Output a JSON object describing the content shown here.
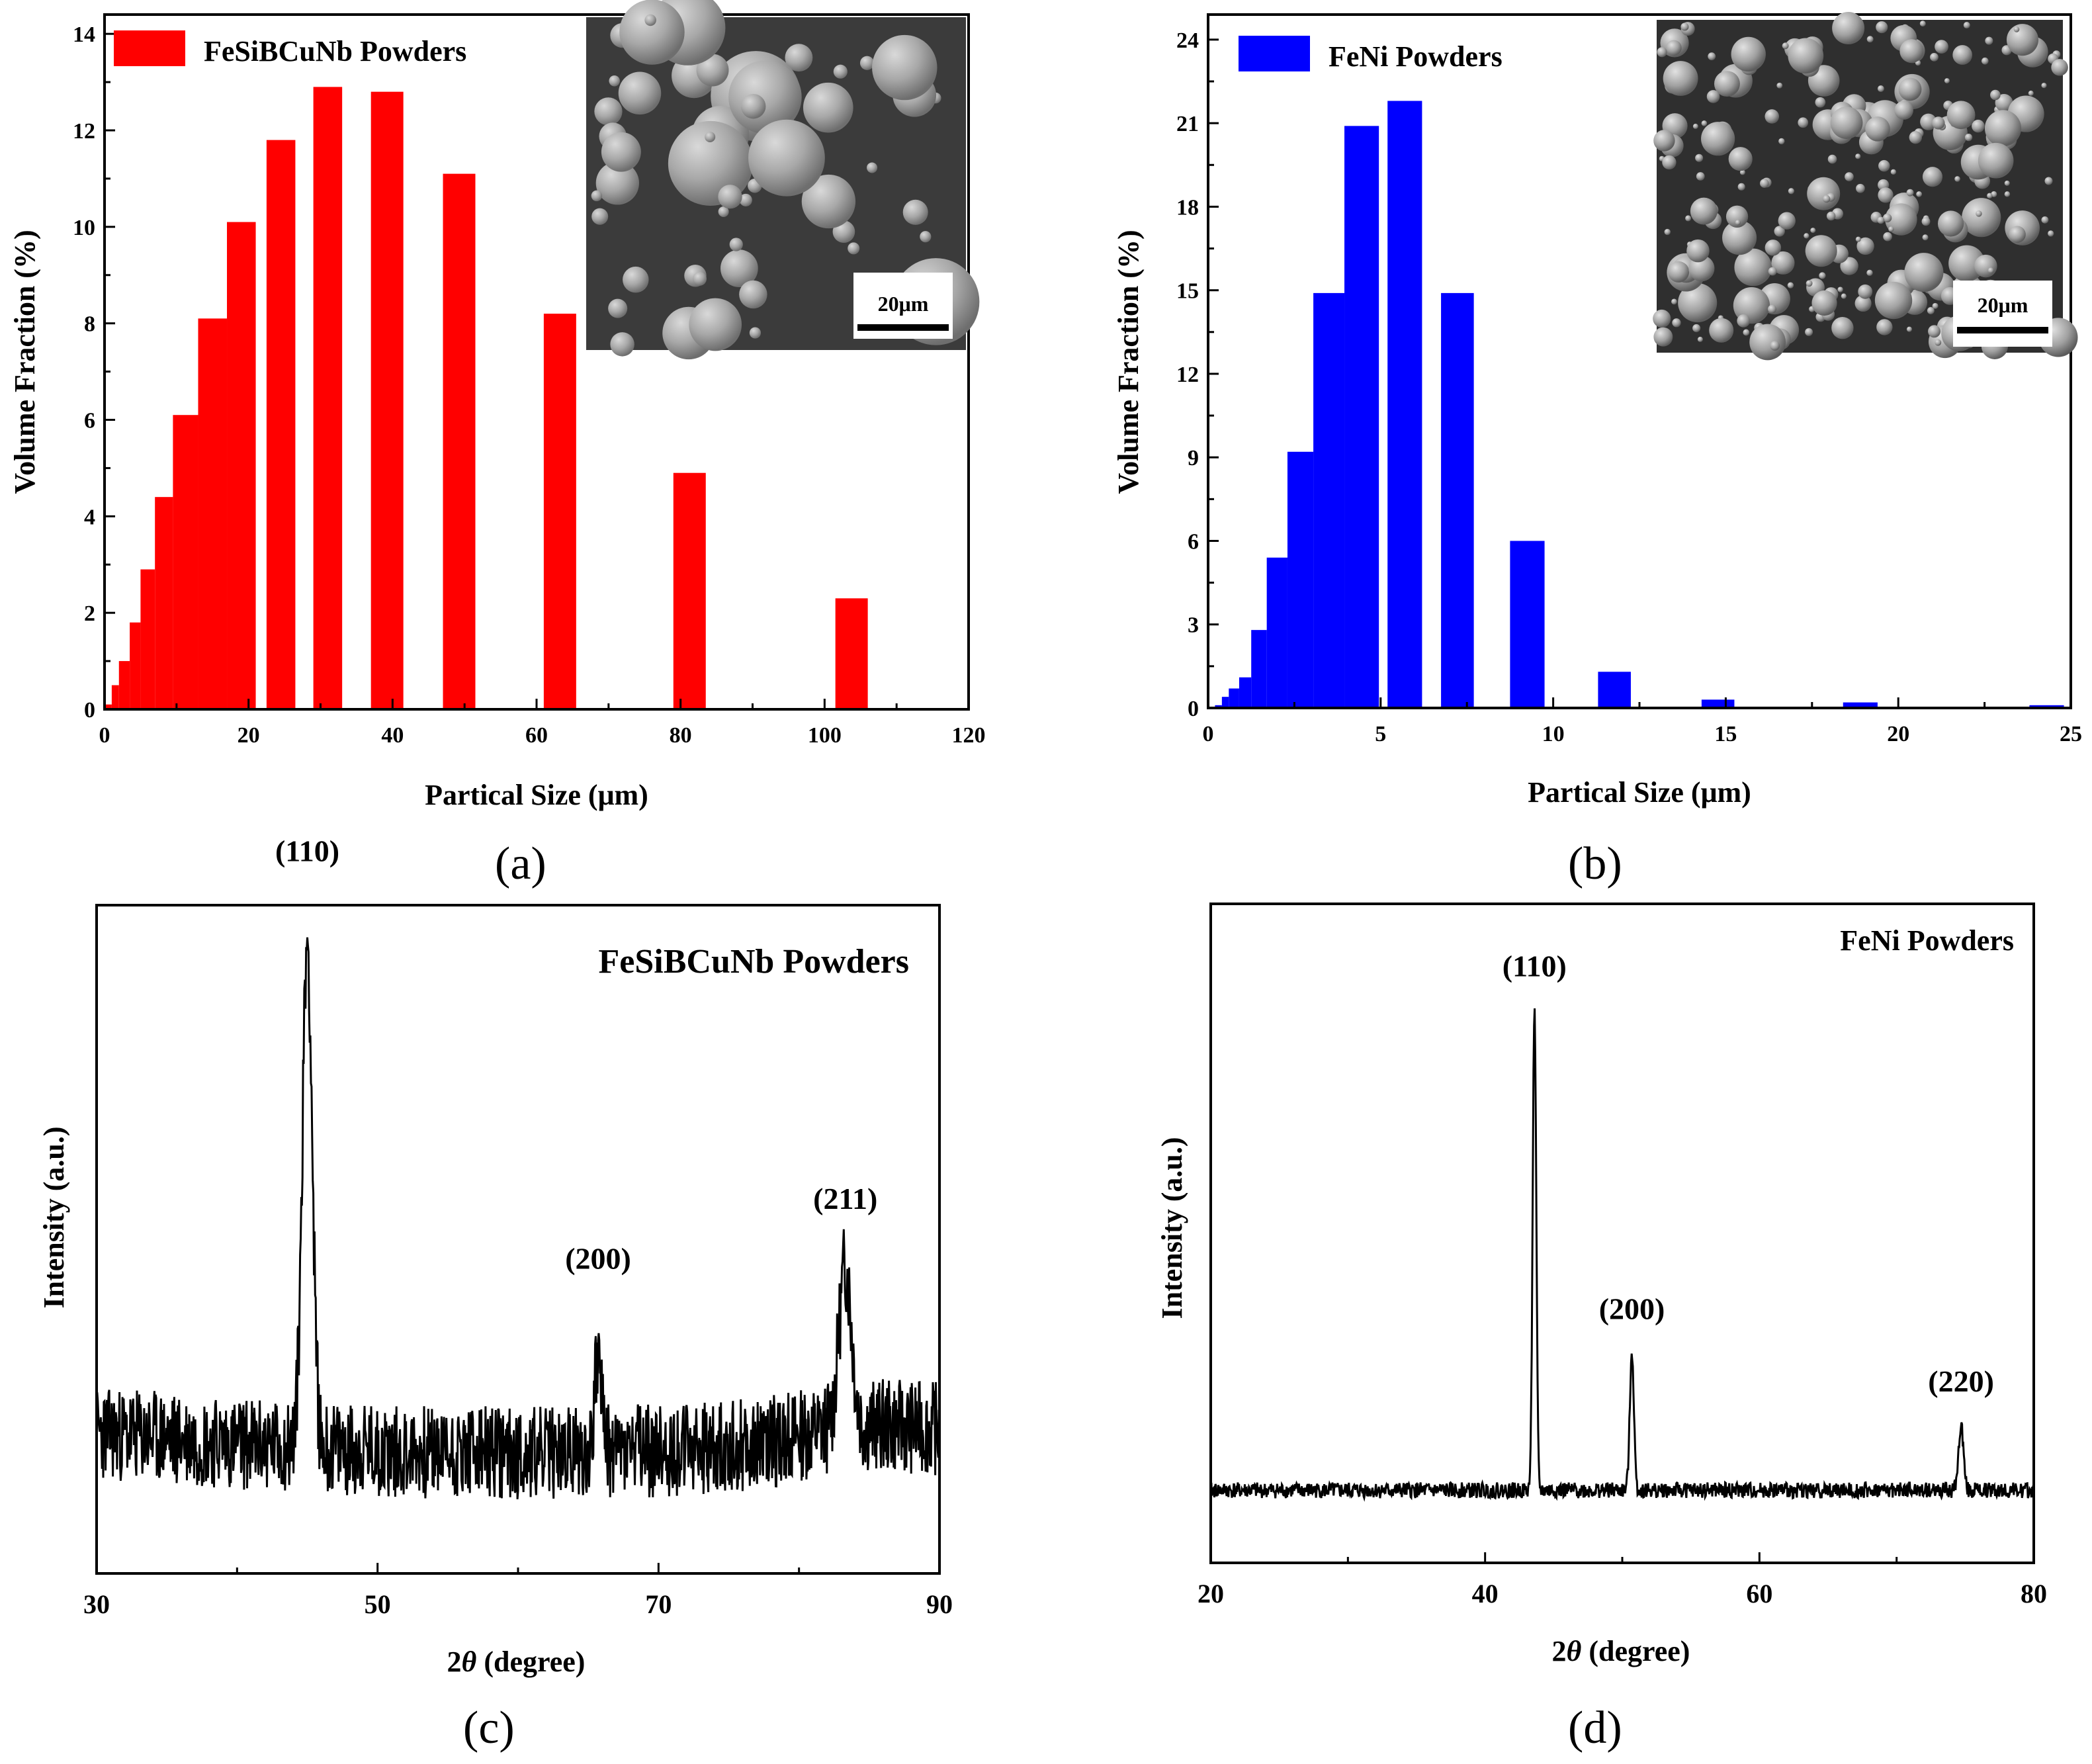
{
  "panels": {
    "a": {
      "label_open": "(",
      "label_letter": "a",
      "label_close": ")"
    },
    "b": {
      "label_open": "(",
      "label_letter": "b",
      "label_close": ")"
    },
    "c": {
      "label_open": "(",
      "label_letter": "c",
      "label_close": ")"
    },
    "d": {
      "label_open": "(",
      "label_letter": "d",
      "label_close": ")"
    }
  },
  "sem": {
    "scale_a": "20μm",
    "scale_b": "20μm"
  },
  "colors": {
    "red": "#ff0000",
    "blue": "#0000ff",
    "black": "#000000",
    "sem_bg": "#3a3a3a"
  },
  "chart_data": [
    {
      "id": "a",
      "type": "bar",
      "legend": "FeSiBCuNb Powders",
      "legend_position": "top-left",
      "xlabel": "Partical Size (μm)",
      "ylabel": "Volume Fraction (%)",
      "xlim": [
        0,
        120
      ],
      "ylim": [
        0,
        14.4
      ],
      "xticks": [
        0,
        20,
        40,
        60,
        80,
        100,
        120
      ],
      "yticks": [
        0,
        2,
        4,
        6,
        8,
        10,
        12,
        14
      ],
      "color": "#ff0000",
      "bins": [
        {
          "x0": 0,
          "x1": 1,
          "value": 0.1
        },
        {
          "x0": 1,
          "x1": 2,
          "value": 0.5
        },
        {
          "x0": 2,
          "x1": 3.5,
          "value": 1.0
        },
        {
          "x0": 3.5,
          "x1": 5,
          "value": 1.8
        },
        {
          "x0": 5,
          "x1": 7,
          "value": 2.9
        },
        {
          "x0": 7,
          "x1": 9.5,
          "value": 4.4
        },
        {
          "x0": 9.5,
          "x1": 13,
          "value": 6.1
        },
        {
          "x0": 13,
          "x1": 17,
          "value": 8.1
        },
        {
          "x0": 17,
          "x1": 21,
          "value": 10.1
        },
        {
          "x0": 22.5,
          "x1": 26.5,
          "value": 11.8
        },
        {
          "x0": 29,
          "x1": 33,
          "value": 12.9
        },
        {
          "x0": 37,
          "x1": 41.5,
          "value": 12.8
        },
        {
          "x0": 47,
          "x1": 51.5,
          "value": 11.1
        },
        {
          "x0": 61,
          "x1": 65.5,
          "value": 8.2
        },
        {
          "x0": 79,
          "x1": 83.5,
          "value": 4.9
        },
        {
          "x0": 101.5,
          "x1": 106,
          "value": 2.3
        }
      ]
    },
    {
      "id": "b",
      "type": "bar",
      "legend": "FeNi Powders",
      "legend_position": "top-left",
      "xlabel": "Partical Size (μm)",
      "ylabel": "Volume Fraction (%)",
      "xlim": [
        0,
        25
      ],
      "ylim": [
        0,
        24.9
      ],
      "xticks": [
        0,
        5,
        10,
        15,
        20,
        25
      ],
      "yticks": [
        0,
        3,
        6,
        9,
        12,
        15,
        18,
        21,
        24
      ],
      "color": "#0000ff",
      "bins": [
        {
          "x0": 0.2,
          "x1": 0.4,
          "value": 0.1
        },
        {
          "x0": 0.4,
          "x1": 0.6,
          "value": 0.4
        },
        {
          "x0": 0.6,
          "x1": 0.9,
          "value": 0.7
        },
        {
          "x0": 0.9,
          "x1": 1.25,
          "value": 1.1
        },
        {
          "x0": 1.25,
          "x1": 1.7,
          "value": 2.8
        },
        {
          "x0": 1.7,
          "x1": 2.3,
          "value": 5.4
        },
        {
          "x0": 2.3,
          "x1": 3.05,
          "value": 9.2
        },
        {
          "x0": 3.05,
          "x1": 3.95,
          "value": 14.9
        },
        {
          "x0": 3.95,
          "x1": 4.95,
          "value": 20.9
        },
        {
          "x0": 5.2,
          "x1": 6.2,
          "value": 21.8
        },
        {
          "x0": 6.75,
          "x1": 7.7,
          "value": 14.9
        },
        {
          "x0": 8.75,
          "x1": 9.75,
          "value": 6.0
        },
        {
          "x0": 11.3,
          "x1": 12.25,
          "value": 1.3
        },
        {
          "x0": 14.3,
          "x1": 15.25,
          "value": 0.3
        },
        {
          "x0": 18.4,
          "x1": 19.4,
          "value": 0.2
        },
        {
          "x0": 23.8,
          "x1": 24.8,
          "value": 0.1
        }
      ]
    },
    {
      "id": "c",
      "type": "line",
      "title": "FeSiBCuNb Powders",
      "xlabel_prefix": "2",
      "xlabel_theta": "θ",
      "xlabel_suffix": " (degree)",
      "ylabel": "Intensity (a.u.)",
      "xlim": [
        30,
        90
      ],
      "ylim": [
        0,
        100
      ],
      "xticks": [
        30,
        50,
        70,
        90
      ],
      "baseline": 21,
      "noise": 7,
      "peaks": [
        {
          "x": 45.0,
          "height": 76,
          "width": 0.35,
          "label": "(110)"
        },
        {
          "x": 65.7,
          "height": 15,
          "width": 0.25,
          "label": "(200)"
        },
        {
          "x": 83.3,
          "height": 24,
          "width": 0.45,
          "label": "(211)"
        }
      ]
    },
    {
      "id": "d",
      "type": "line",
      "title": "FeNi Powders",
      "xlabel_prefix": "2",
      "xlabel_theta": "θ",
      "xlabel_suffix": " (degree)",
      "ylabel": "Intensity (a.u.)",
      "xlim": [
        20,
        80
      ],
      "ylim": [
        0,
        100
      ],
      "xticks": [
        20,
        40,
        60,
        80
      ],
      "baseline": 11,
      "noise": 1.2,
      "peaks": [
        {
          "x": 43.6,
          "height": 73,
          "width": 0.13,
          "label": "(110)"
        },
        {
          "x": 50.7,
          "height": 21,
          "width": 0.15,
          "label": "(200)"
        },
        {
          "x": 74.7,
          "height": 10,
          "width": 0.18,
          "label": "(220)"
        }
      ]
    }
  ]
}
